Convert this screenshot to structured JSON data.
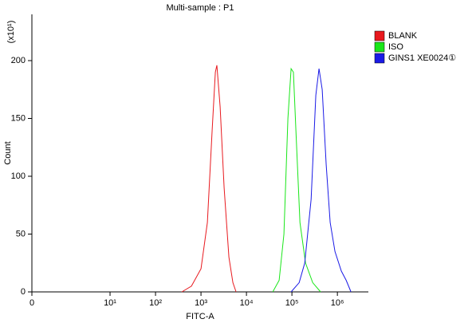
{
  "chart_data": {
    "type": "line",
    "title": "Multi-sample : P1",
    "x_label": "FITC-A",
    "y_label": "Count",
    "y_multiplier": "(x10¹)",
    "xscale": "biexponential",
    "xlim": [
      0,
      4800000
    ],
    "xticks": [
      {
        "value": 0,
        "label": "0"
      },
      {
        "value": 10,
        "label": "10¹"
      },
      {
        "value": 100,
        "label": "10²"
      },
      {
        "value": 1000,
        "label": "10³"
      },
      {
        "value": 10000,
        "label": "10⁴"
      },
      {
        "value": 100000,
        "label": "10⁵"
      },
      {
        "value": 1000000,
        "label": "10⁶"
      }
    ],
    "ylim": [
      0,
      240
    ],
    "yticks": [
      0,
      50,
      100,
      150,
      200
    ],
    "legend": "right",
    "series": [
      {
        "name": "BLANK",
        "color": "#e8191e",
        "x": [
          379,
          616,
          1000,
          1380,
          1760,
          2070,
          2240,
          2640,
          3230,
          4110,
          5030,
          5910
        ],
        "values": [
          0,
          5,
          20,
          60,
          140,
          190,
          196,
          160,
          90,
          30,
          8,
          0
        ]
      },
      {
        "name": "ISO",
        "color": "#19e619",
        "x": [
          37900,
          52400,
          66800,
          81700,
          96000,
          108000,
          122000,
          150000,
          199000,
          286000,
          428000
        ],
        "values": [
          0,
          10,
          50,
          150,
          193,
          190,
          140,
          60,
          25,
          8,
          0
        ]
      },
      {
        "name": "GINS1  XE0024①",
        "color": "#1a1ae6",
        "x": [
          96000,
          144000,
          191000,
          264000,
          336000,
          395000,
          464000,
          568000,
          695000,
          885000,
          1220000,
          1560000,
          1990000
        ],
        "values": [
          0,
          8,
          25,
          80,
          170,
          193,
          175,
          110,
          60,
          35,
          18,
          10,
          0
        ]
      }
    ]
  }
}
